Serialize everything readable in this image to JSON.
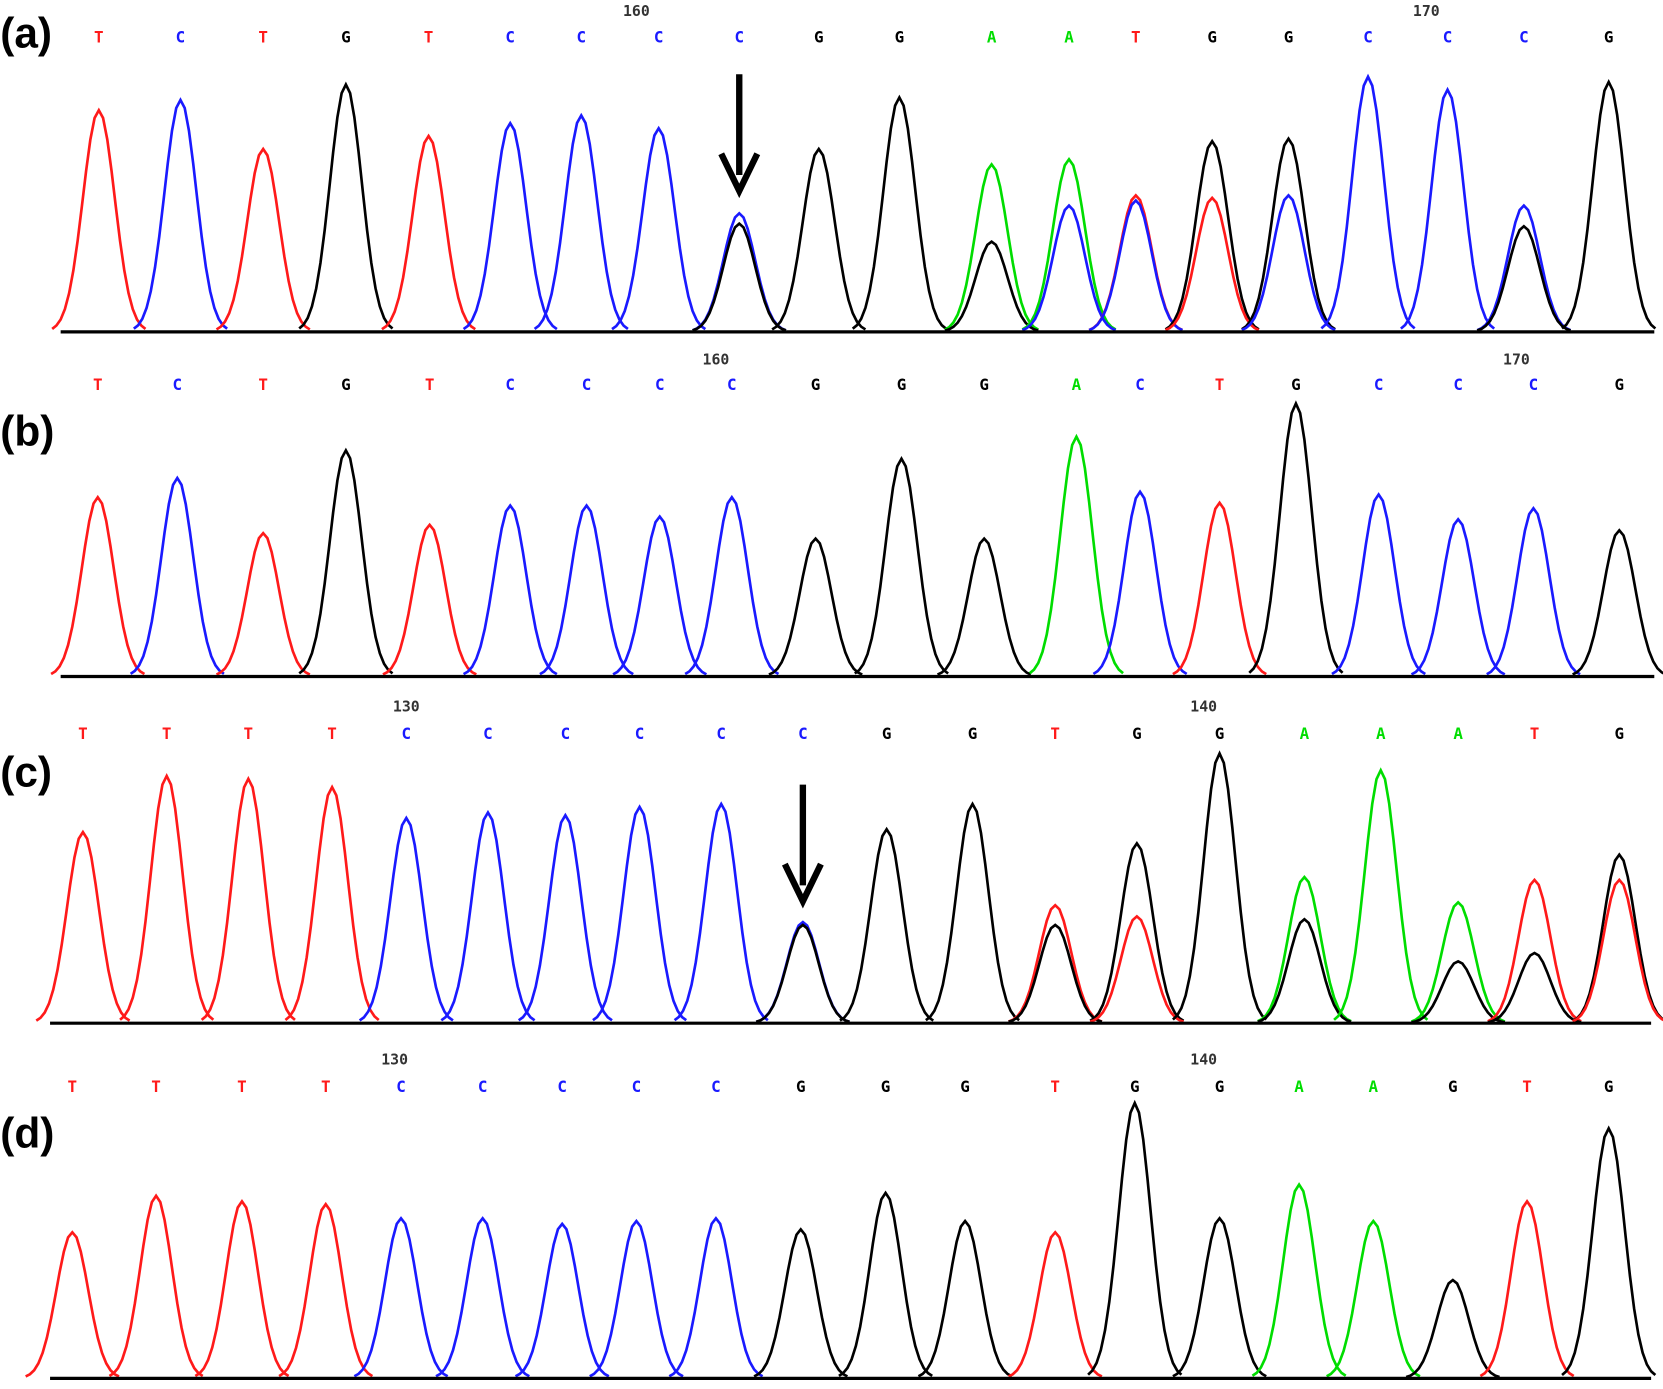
{
  "colors": {
    "A": "#00dd00",
    "C": "#1a1aff",
    "G": "#000000",
    "T": "#ff1a1a"
  },
  "panels": [
    {
      "label": "(a)",
      "ruler": [
        160,
        170
      ],
      "calls": [
        "T",
        "C",
        "T",
        "G",
        "T",
        "C",
        "C",
        "C",
        "C",
        "G",
        "G",
        "A",
        "A",
        "T",
        "G",
        "G",
        "C",
        "C",
        "C",
        "G"
      ],
      "peaks": [
        {
          "T": 86
        },
        {
          "C": 90
        },
        {
          "T": 71
        },
        {
          "G": 96
        },
        {
          "T": 76
        },
        {
          "C": 81
        },
        {
          "C": 84
        },
        {
          "C": 79
        },
        {
          "C": 46,
          "G": 42
        },
        {
          "G": 71
        },
        {
          "G": 91
        },
        {
          "A": 65,
          "G": 35
        },
        {
          "A": 67,
          "C": 49
        },
        {
          "T": 53,
          "C": 51
        },
        {
          "G": 74,
          "T": 52
        },
        {
          "G": 75,
          "C": 53
        },
        {
          "C": 99
        },
        {
          "C": 94
        },
        {
          "C": 49,
          "G": 41
        },
        {
          "G": 97
        }
      ]
    },
    {
      "label": "(b)",
      "ruler": [
        160,
        170
      ],
      "calls": [
        "T",
        "C",
        "T",
        "G",
        "T",
        "C",
        "C",
        "C",
        "C",
        "G",
        "G",
        "G",
        "A",
        "C",
        "T",
        "G",
        "C",
        "C",
        "C",
        "G"
      ],
      "peaks": [
        {
          "T": 65
        },
        {
          "C": 72
        },
        {
          "T": 52
        },
        {
          "G": 82
        },
        {
          "T": 55
        },
        {
          "C": 62
        },
        {
          "C": 62
        },
        {
          "C": 58
        },
        {
          "C": 65
        },
        {
          "G": 50
        },
        {
          "G": 79
        },
        {
          "G": 50
        },
        {
          "A": 87
        },
        {
          "C": 67
        },
        {
          "T": 63
        },
        {
          "G": 99
        },
        {
          "C": 66
        },
        {
          "C": 57
        },
        {
          "C": 61
        },
        {
          "G": 53
        }
      ]
    },
    {
      "label": "(c)",
      "ruler": [
        130,
        140
      ],
      "calls": [
        "T",
        "T",
        "T",
        "T",
        "C",
        "C",
        "C",
        "C",
        "C",
        "C",
        "G",
        "G",
        "T",
        "G",
        "G",
        "A",
        "A",
        "A",
        "T",
        "G"
      ],
      "peaks": [
        {
          "T": 68
        },
        {
          "T": 88
        },
        {
          "T": 87
        },
        {
          "T": 84
        },
        {
          "C": 73
        },
        {
          "C": 75
        },
        {
          "C": 74
        },
        {
          "C": 77
        },
        {
          "C": 78
        },
        {
          "C": 36,
          "G": 35
        },
        {
          "G": 69
        },
        {
          "G": 78
        },
        {
          "T": 42,
          "G": 35
        },
        {
          "G": 64,
          "T": 38
        },
        {
          "G": 96
        },
        {
          "A": 52,
          "G": 37
        },
        {
          "A": 90
        },
        {
          "A": 43,
          "G": 22
        },
        {
          "T": 51,
          "G": 25
        },
        {
          "G": 60,
          "T": 51
        }
      ]
    },
    {
      "label": "(d)",
      "ruler": [
        130,
        140
      ],
      "calls": [
        "T",
        "T",
        "T",
        "T",
        "C",
        "C",
        "C",
        "C",
        "C",
        "G",
        "G",
        "G",
        "T",
        "G",
        "G",
        "A",
        "A",
        "G",
        "T",
        "G"
      ],
      "peaks": [
        {
          "T": 52
        },
        {
          "T": 65
        },
        {
          "T": 63
        },
        {
          "T": 62
        },
        {
          "C": 57
        },
        {
          "C": 57
        },
        {
          "C": 55
        },
        {
          "C": 56
        },
        {
          "C": 57
        },
        {
          "G": 53
        },
        {
          "G": 66
        },
        {
          "G": 56
        },
        {
          "T": 52
        },
        {
          "G": 98
        },
        {
          "G": 57
        },
        {
          "A": 69
        },
        {
          "A": 56
        },
        {
          "G": 35
        },
        {
          "T": 63
        },
        {
          "G": 89
        }
      ]
    }
  ]
}
